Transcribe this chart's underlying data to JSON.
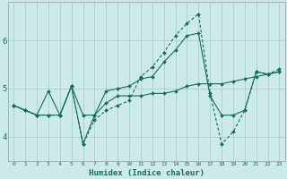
{
  "xlabel": "Humidex (Indice chaleur)",
  "bg_color": "#cdeaea",
  "line_color": "#1a6b5a",
  "grid_color": "#aacfcf",
  "xlim": [
    -0.5,
    23.5
  ],
  "ylim": [
    3.5,
    6.8
  ],
  "yticks": [
    4,
    5,
    6
  ],
  "xtick_labels": [
    "0",
    "1",
    "2",
    "3",
    "4",
    "5",
    "6",
    "7",
    "8",
    "9",
    "10",
    "11",
    "12",
    "13",
    "14",
    "15",
    "16",
    "17",
    "18",
    "19",
    "20",
    "21",
    "22",
    "23"
  ],
  "line1_x": [
    0,
    1,
    2,
    3,
    4,
    5,
    6,
    7,
    8,
    9,
    10,
    11,
    12,
    13,
    14,
    15,
    16,
    17,
    18,
    19,
    20,
    21,
    22,
    23
  ],
  "line1_y": [
    4.65,
    4.55,
    4.45,
    4.95,
    4.45,
    5.05,
    3.85,
    4.45,
    4.95,
    5.0,
    5.05,
    5.2,
    5.25,
    5.55,
    5.8,
    6.1,
    6.15,
    4.85,
    4.45,
    4.45,
    4.55,
    5.35,
    5.3,
    5.35
  ],
  "line2_x": [
    0,
    1,
    2,
    3,
    4,
    5,
    6,
    7,
    8,
    9,
    10,
    11,
    12,
    13,
    14,
    15,
    16,
    17,
    18,
    19,
    20,
    21,
    22,
    23
  ],
  "line2_y": [
    4.65,
    4.55,
    4.45,
    4.45,
    4.45,
    5.05,
    4.45,
    4.45,
    4.7,
    4.85,
    4.85,
    4.85,
    4.9,
    4.9,
    4.95,
    5.05,
    5.1,
    5.1,
    5.1,
    5.15,
    5.2,
    5.25,
    5.3,
    5.35
  ],
  "line3_x": [
    0,
    1,
    2,
    3,
    4,
    5,
    6,
    7,
    8,
    9,
    10,
    11,
    12,
    13,
    14,
    15,
    16,
    17,
    18,
    19,
    20,
    21,
    22,
    23
  ],
  "line3_y": [
    4.65,
    4.55,
    4.45,
    4.45,
    4.45,
    5.05,
    3.85,
    4.35,
    4.55,
    4.65,
    4.75,
    5.25,
    5.45,
    5.75,
    6.1,
    6.35,
    6.55,
    4.9,
    3.85,
    4.1,
    4.55,
    5.35,
    5.3,
    5.4
  ]
}
